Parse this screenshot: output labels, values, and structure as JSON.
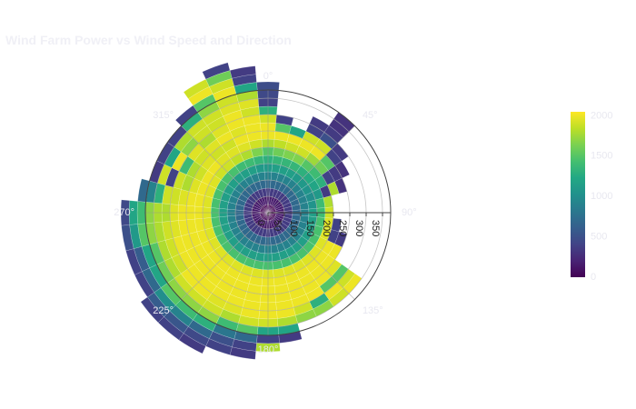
{
  "title": "Wind Farm Power vs Wind Speed and Direction",
  "chart_data": {
    "type": "heatmap",
    "subtype": "polar-barpolar",
    "title": "Wind Farm Power vs Wind Speed and Direction",
    "angular_axis": {
      "direction": "clockwise",
      "rotation_deg": 90,
      "tick_labels": [
        "0°",
        "45°",
        "90°",
        "135°",
        "180°",
        "225°",
        "270°",
        "315°"
      ],
      "tick_values": [
        0,
        45,
        90,
        135,
        180,
        225,
        270,
        315
      ]
    },
    "radial_axis": {
      "range": [
        0,
        375
      ],
      "tick_values": [
        0,
        50,
        100,
        150,
        200,
        250,
        300,
        350
      ],
      "tick_labels": [
        "0",
        "50",
        "100",
        "150",
        "200",
        "250",
        "300",
        "350"
      ],
      "angle_deg": 90
    },
    "colorscale": "viridis",
    "color_range": [
      0,
      2050
    ],
    "colorbar": {
      "tick_values": [
        0,
        500,
        1000,
        1500,
        2000
      ],
      "tick_labels": [
        "0",
        "500",
        "1000",
        "1500",
        "2000"
      ]
    },
    "bin_width_deg": 10,
    "radial_bin": 25,
    "sectors": [
      {
        "theta": 0,
        "cells": [
          0,
          150,
          350,
          700,
          900,
          1100,
          1300,
          1500,
          1800,
          2000,
          2000,
          1900,
          1300,
          400,
          450,
          480
        ]
      },
      {
        "theta": 10,
        "cells": [
          0,
          150,
          350,
          700,
          900,
          1150,
          1350,
          1600,
          1850,
          2000,
          1500,
          400
        ]
      },
      {
        "theta": 20,
        "cells": [
          0,
          150,
          350,
          700,
          900,
          1150,
          1350,
          1650,
          1900,
          2000,
          1200
        ]
      },
      {
        "theta": 30,
        "cells": [
          0,
          150,
          350,
          700,
          900,
          1150,
          1350,
          1650,
          1900,
          2000,
          1900,
          400,
          350
        ]
      },
      {
        "theta": 40,
        "cells": [
          0,
          150,
          350,
          700,
          900,
          1100,
          1300,
          1500,
          1750,
          2000,
          1900,
          500,
          350,
          300,
          300
        ]
      },
      {
        "theta": 50,
        "cells": [
          0,
          150,
          350,
          700,
          900,
          1100,
          1250,
          1400,
          1600,
          1500,
          400,
          350
        ]
      },
      {
        "theta": 60,
        "cells": [
          0,
          150,
          350,
          700,
          900,
          1050,
          1200,
          1300,
          400,
          350,
          300
        ]
      },
      {
        "theta": 70,
        "cells": [
          0,
          150,
          350,
          700,
          900,
          1000,
          1100,
          350,
          1800,
          300
        ]
      },
      {
        "theta": 80,
        "cells": [
          0,
          150,
          350,
          700,
          900,
          1050,
          1400,
          1800
        ]
      },
      {
        "theta": 90,
        "cells": [
          0,
          150,
          350,
          700,
          900,
          1150,
          1400,
          1900
        ]
      },
      {
        "theta": 100,
        "cells": [
          0,
          150,
          350,
          700,
          900,
          1150,
          1450,
          1950,
          400
        ]
      },
      {
        "theta": 110,
        "cells": [
          0,
          150,
          350,
          700,
          900,
          1150,
          1450,
          1950,
          400,
          350
        ]
      },
      {
        "theta": 120,
        "cells": [
          0,
          150,
          350,
          700,
          900,
          1150,
          1450,
          1950,
          2000,
          2000
        ]
      },
      {
        "theta": 130,
        "cells": [
          0,
          150,
          350,
          700,
          900,
          1150,
          1450,
          1950,
          2000,
          2000,
          1950,
          1500,
          1900,
          2000
        ]
      },
      {
        "theta": 140,
        "cells": [
          0,
          150,
          350,
          700,
          900,
          1150,
          1450,
          1950,
          2000,
          2000,
          2000,
          1500,
          2000,
          1900
        ]
      },
      {
        "theta": 150,
        "cells": [
          0,
          150,
          350,
          700,
          900,
          1150,
          1450,
          1950,
          2000,
          2000,
          2000,
          2000,
          1300,
          1700
        ]
      },
      {
        "theta": 160,
        "cells": [
          0,
          150,
          350,
          700,
          900,
          1150,
          1450,
          1950,
          2000,
          2000,
          2000,
          2000,
          1900,
          1700
        ]
      },
      {
        "theta": 170,
        "cells": [
          0,
          150,
          350,
          700,
          900,
          1150,
          1450,
          1950,
          2000,
          2000,
          2000,
          2000,
          2000,
          1800,
          1200,
          350
        ]
      },
      {
        "theta": 180,
        "cells": [
          0,
          150,
          350,
          700,
          900,
          1150,
          1450,
          1950,
          2000,
          2000,
          2000,
          2000,
          2000,
          1900,
          1200,
          400,
          1800
        ]
      },
      {
        "theta": 190,
        "cells": [
          0,
          150,
          350,
          700,
          900,
          1150,
          1450,
          1950,
          2000,
          2000,
          2000,
          2000,
          2000,
          1900,
          1500,
          700,
          400,
          350
        ]
      },
      {
        "theta": 200,
        "cells": [
          0,
          150,
          350,
          700,
          900,
          1150,
          1450,
          1950,
          2000,
          2000,
          2000,
          2000,
          1950,
          1800,
          1400,
          800,
          500,
          400
        ]
      },
      {
        "theta": 210,
        "cells": [
          0,
          150,
          350,
          700,
          900,
          1150,
          1450,
          1950,
          2000,
          2000,
          2000,
          2000,
          1950,
          1900,
          1700,
          1300,
          700,
          450,
          350
        ]
      },
      {
        "theta": 220,
        "cells": [
          0,
          150,
          350,
          700,
          900,
          1150,
          1450,
          1950,
          2000,
          2000,
          2000,
          2000,
          2000,
          1900,
          1700,
          1400,
          900,
          550,
          400
        ]
      },
      {
        "theta": 230,
        "cells": [
          0,
          150,
          350,
          700,
          900,
          1150,
          1450,
          1950,
          2000,
          2000,
          2000,
          2000,
          2000,
          1900,
          1700,
          1500,
          1000,
          600,
          400
        ]
      },
      {
        "theta": 240,
        "cells": [
          0,
          150,
          350,
          700,
          900,
          1150,
          1450,
          1950,
          2000,
          2000,
          2000,
          2000,
          1900,
          1800,
          1600,
          1200,
          700,
          400
        ]
      },
      {
        "theta": 250,
        "cells": [
          0,
          150,
          350,
          700,
          900,
          1150,
          1450,
          1950,
          2000,
          2000,
          2000,
          2000,
          1900,
          1800,
          1500,
          1200,
          600,
          400
        ]
      },
      {
        "theta": 260,
        "cells": [
          0,
          150,
          350,
          700,
          900,
          1150,
          1450,
          1950,
          2000,
          2000,
          2000,
          1950,
          1900,
          1800,
          1700,
          1500,
          1100,
          500
        ]
      },
      {
        "theta": 270,
        "cells": [
          0,
          150,
          350,
          700,
          900,
          1150,
          1450,
          1950,
          2000,
          2000,
          2000,
          1950,
          1800,
          1800,
          1700,
          1400,
          1200,
          450
        ]
      },
      {
        "theta": 280,
        "cells": [
          0,
          150,
          350,
          700,
          900,
          1150,
          1450,
          1950,
          2000,
          2000,
          1950,
          1900,
          1900,
          1300,
          900,
          700
        ]
      },
      {
        "theta": 290,
        "cells": [
          0,
          150,
          350,
          700,
          900,
          1150,
          1450,
          1950,
          2000,
          1950,
          1800,
          1900,
          400,
          1900,
          350
        ]
      },
      {
        "theta": 300,
        "cells": [
          0,
          150,
          350,
          700,
          900,
          1150,
          1450,
          1950,
          2000,
          1900,
          1800,
          1400,
          2000,
          1200,
          400
        ]
      },
      {
        "theta": 310,
        "cells": [
          0,
          150,
          350,
          700,
          900,
          1150,
          1450,
          1900,
          2000,
          1950,
          1900,
          1950,
          1700,
          1800,
          400
        ]
      },
      {
        "theta": 320,
        "cells": [
          0,
          150,
          350,
          700,
          900,
          1150,
          1450,
          1900,
          1950,
          1900,
          1950,
          1800,
          1900,
          1900,
          1300,
          400
        ]
      },
      {
        "theta": 330,
        "cells": [
          0,
          150,
          350,
          700,
          900,
          1150,
          1400,
          1850,
          1950,
          1900,
          2000,
          1950,
          1900,
          1900,
          1700,
          1500,
          2000,
          1900
        ]
      },
      {
        "theta": 340,
        "cells": [
          0,
          150,
          350,
          700,
          900,
          1150,
          1400,
          1800,
          1950,
          2000,
          1950,
          2000,
          2000,
          1950,
          1900,
          2000,
          1900,
          1600,
          400
        ]
      },
      {
        "theta": 350,
        "cells": [
          0,
          150,
          350,
          700,
          900,
          1100,
          1350,
          1650,
          1900,
          2000,
          2000,
          2000,
          1900,
          1950,
          1800,
          1200,
          400,
          350
        ]
      }
    ]
  }
}
